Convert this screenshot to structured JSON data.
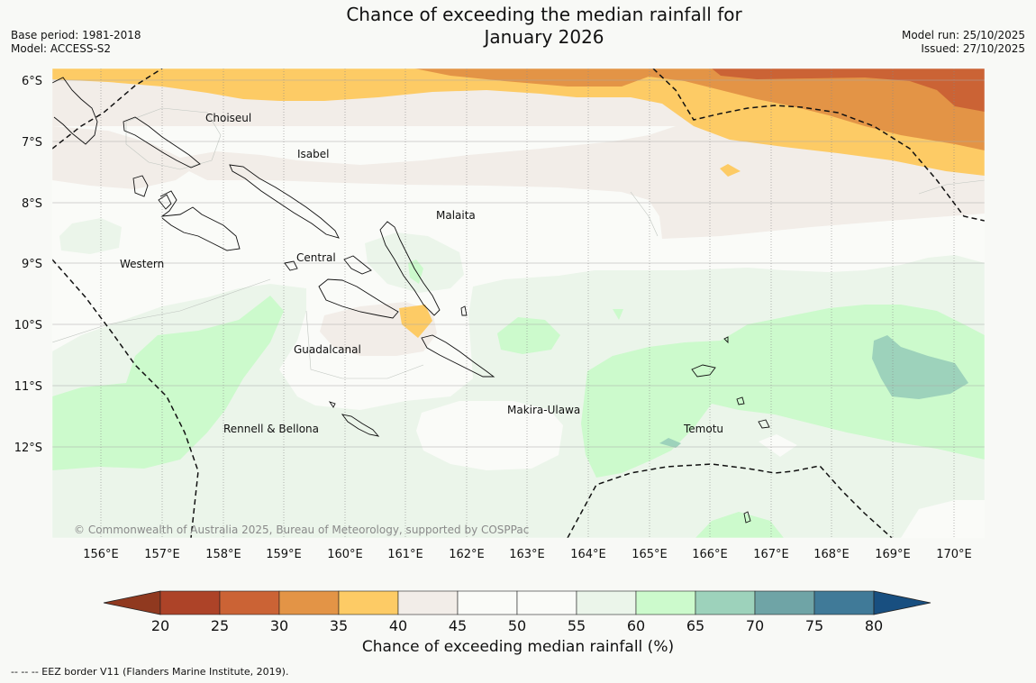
{
  "header": {
    "title_line1": "Chance of exceeding the median rainfall for",
    "title_line2": "January 2026",
    "base_period": "Base period: 1981-2018",
    "model": "Model: ACCESS-S2",
    "model_run": "Model run: 25/10/2025",
    "issued": "Issued: 27/10/2025"
  },
  "map": {
    "lon_ticks": [
      "156°E",
      "157°E",
      "158°E",
      "159°E",
      "160°E",
      "161°E",
      "162°E",
      "163°E",
      "164°E",
      "165°E",
      "166°E",
      "167°E",
      "168°E",
      "169°E",
      "170°E"
    ],
    "lat_ticks": [
      "6°S",
      "7°S",
      "8°S",
      "9°S",
      "10°S",
      "11°S",
      "12°S"
    ],
    "provinces": [
      "Choiseul",
      "Isabel",
      "Malaita",
      "Central",
      "Western",
      "Guadalcanal",
      "Makira-Ulawa",
      "Rennell & Bellona",
      "Temotu"
    ],
    "copyright": "© Commonwealth of Australia 2025, Bureau of Meteorology, supported by COSPPac"
  },
  "colorbar": {
    "ticks": [
      "20",
      "25",
      "30",
      "35",
      "40",
      "45",
      "50",
      "55",
      "60",
      "65",
      "70",
      "75",
      "80"
    ],
    "colors": [
      "#ad4328",
      "#cb6335",
      "#e39446",
      "#fdcb65",
      "#f2ede8",
      "#fafbf8",
      "#fafbf8",
      "#ebf5ea",
      "#ccfacc",
      "#9dd2bb",
      "#6fa4a6",
      "#407a98"
    ],
    "under_color": "#90391f",
    "over_color": "#184f80",
    "label": "Chance of exceeding median rainfall (%)"
  },
  "footer": {
    "eez_note": "--  --  -- EEZ border V11 (Flanders Marine Institute, 2019)."
  }
}
